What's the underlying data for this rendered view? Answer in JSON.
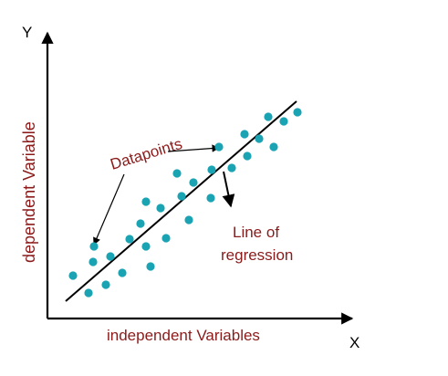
{
  "labels": {
    "y_axis_letter": "Y",
    "x_axis_letter": "X",
    "y_axis_label": "dependent Variable",
    "x_axis_label": "independent Variables",
    "datapoints_label": "Datapoints",
    "regression_label_line1": "Line of",
    "regression_label_line2": "regression"
  },
  "colors": {
    "axis": "#000000",
    "label_text": "#8b1a1a",
    "axis_letter": "#000000",
    "point": "#1aa3b3",
    "regression_line": "#000000",
    "background": "#ffffff"
  },
  "icons": {
    "y_axis_arrowhead": "arrow-up-icon",
    "x_axis_arrowhead": "arrow-right-icon",
    "pointer_arrowhead": "arrow-head-icon"
  },
  "chart_data": {
    "type": "scatter",
    "series": [
      {
        "points": [
          [
            80,
            302
          ],
          [
            97,
            321
          ],
          [
            103,
            270
          ],
          [
            102,
            287
          ],
          [
            116,
            312
          ],
          [
            121,
            281
          ],
          [
            134,
            299
          ],
          [
            142,
            262
          ],
          [
            154,
            245
          ],
          [
            160,
            221
          ],
          [
            160,
            270
          ],
          [
            165,
            292
          ],
          [
            176,
            228
          ],
          [
            182,
            261
          ],
          [
            194,
            190
          ],
          [
            199,
            215
          ],
          [
            207,
            241
          ],
          [
            212,
            200
          ],
          [
            232,
            186
          ],
          [
            231,
            217
          ],
          [
            240,
            161
          ],
          [
            254,
            184
          ],
          [
            268,
            147
          ],
          [
            271,
            171
          ],
          [
            284,
            152
          ],
          [
            294,
            128
          ],
          [
            300,
            161
          ],
          [
            311,
            133
          ],
          [
            326,
            123
          ]
        ]
      }
    ],
    "regression_line": [
      [
        72,
        330
      ],
      [
        325,
        111
      ]
    ]
  }
}
